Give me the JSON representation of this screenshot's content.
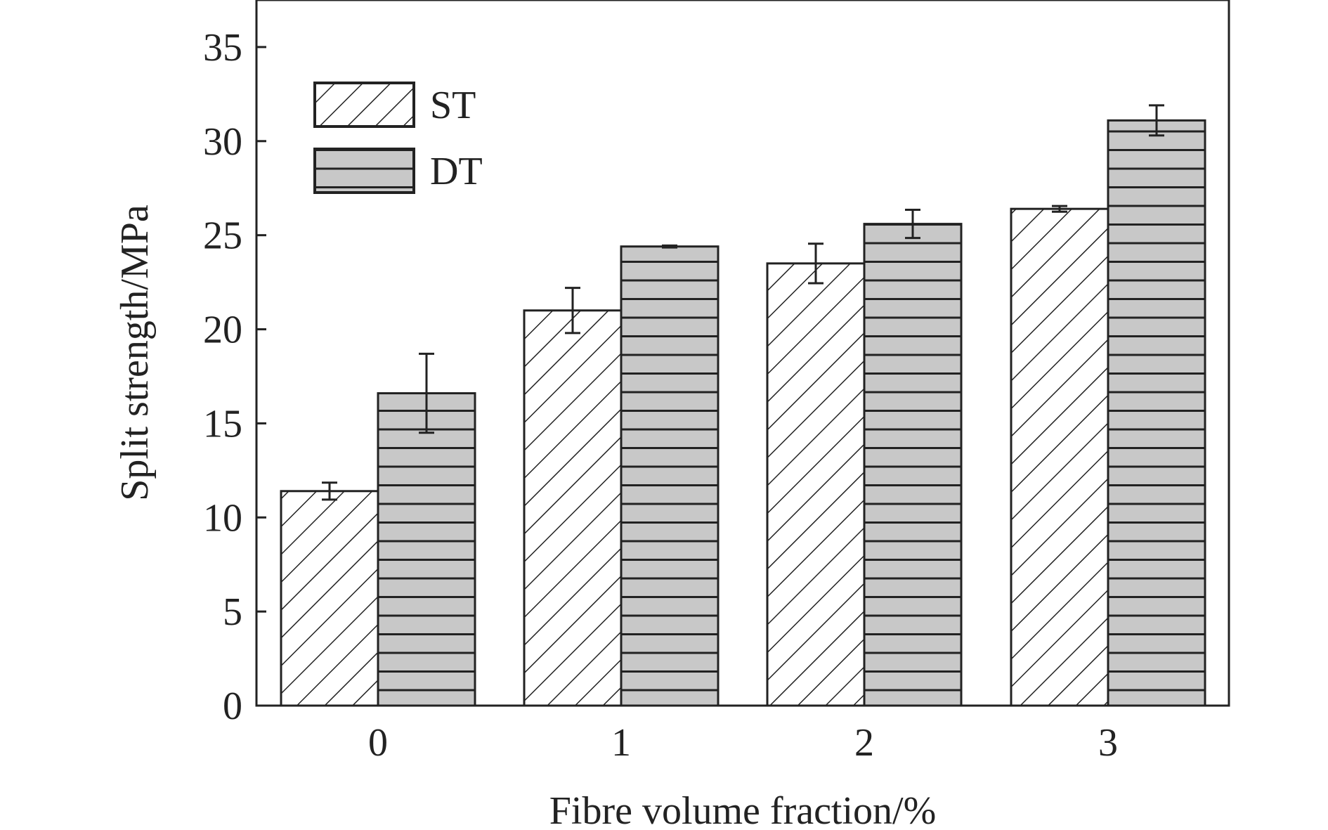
{
  "chart_data": {
    "type": "bar",
    "xlabel": "Fibre volume fraction/%",
    "ylabel": "Split strength/MPa",
    "categories": [
      "0",
      "1",
      "2",
      "3"
    ],
    "ylim": [
      0,
      37.5
    ],
    "yticks": [
      0,
      5,
      10,
      15,
      20,
      25,
      30,
      35
    ],
    "grid": false,
    "legend_position": "top-left",
    "series": [
      {
        "name": "ST",
        "pattern": "diagonal-hatch",
        "fill": "#ffffff",
        "values": [
          11.4,
          21.0,
          23.5,
          26.4
        ],
        "errors": [
          0.45,
          1.2,
          1.05,
          0.15
        ]
      },
      {
        "name": "DT",
        "pattern": "horizontal-stripes",
        "fill": "#c8c8c8",
        "values": [
          16.6,
          24.4,
          25.6,
          31.1
        ],
        "errors": [
          2.1,
          0.05,
          0.75,
          0.8
        ]
      }
    ]
  },
  "colors": {
    "ink": "#222222",
    "dt_fill": "#c8c8c8"
  }
}
